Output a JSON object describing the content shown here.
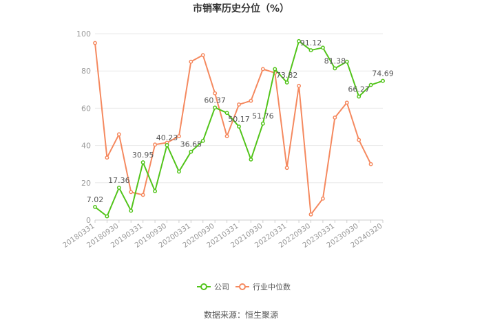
{
  "chart_data": {
    "type": "line",
    "title": "市销率历史分位（%）",
    "source": "数据来源：恒生聚源",
    "ylim": [
      0,
      100
    ],
    "yticks": [
      0,
      20,
      40,
      60,
      80,
      100
    ],
    "x_tick_labels": [
      "20180331",
      "20180930",
      "20190331",
      "20190930",
      "20200331",
      "20200930",
      "20210331",
      "20210930",
      "20220331",
      "20220930",
      "20230331",
      "20230930",
      "20240320"
    ],
    "grid": true,
    "legend_position": "bottom",
    "series": [
      {
        "name": "公司",
        "color": "#52c41a",
        "values": [
          7.02,
          2,
          17.36,
          5,
          30.95,
          15.5,
          40.23,
          26,
          36.65,
          42.5,
          60.37,
          57.5,
          50.17,
          32.5,
          51.76,
          81,
          73.82,
          96,
          91.12,
          92.5,
          81.38,
          85,
          66.27,
          72.5,
          74.69
        ],
        "labels": {
          "0": "7.02",
          "2": "17.36",
          "4": "30.95",
          "6": "40.23",
          "8": "36.65",
          "10": "60.37",
          "12": "50.17",
          "14": "51.76",
          "16": "73.82",
          "18": "91.12",
          "20": "81.38",
          "22": "66.27",
          "24": "74.69"
        }
      },
      {
        "name": "行业中位数",
        "color": "#f5895f",
        "values": [
          95,
          33.5,
          46,
          15,
          13.5,
          40.5,
          41.5,
          45,
          85,
          88.5,
          68,
          45,
          62,
          64,
          81,
          79,
          28,
          72,
          3,
          11.5,
          55,
          63,
          43,
          30
        ]
      }
    ]
  }
}
